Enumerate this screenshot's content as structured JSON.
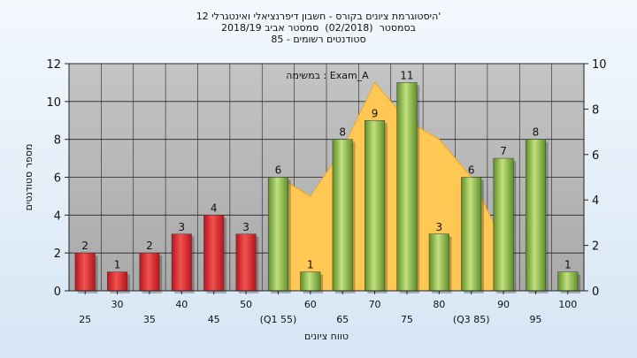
{
  "header": {
    "title_lines": [
      "היסטוגרמת ציונים בקורס - חשבון דיפרנציאלי ואינטגרלי 12'",
      "בסמסטר  (02/2018)  סמסטר אביב 2018/19",
      "סטודנטים רשומים - 85"
    ]
  },
  "chart_data": {
    "type": "bar",
    "xlabel": "טווח ציונים",
    "ylabel": "מספר סטודנטים",
    "ylim": [
      0,
      12
    ],
    "yticks": [
      0,
      2,
      4,
      6,
      8,
      10,
      12
    ],
    "y2lim": [
      0,
      10
    ],
    "y2ticks": [
      0,
      2,
      4,
      6,
      8,
      10
    ],
    "grid": true,
    "annotation": "במשימה : Exam_A",
    "categories": [
      "25",
      "30",
      "35",
      "40",
      "45",
      "50",
      "(Q1 55)",
      "60",
      "65",
      "70",
      "75",
      "80",
      "(Q3 85)",
      "90",
      "95",
      "100"
    ],
    "values": [
      2,
      1,
      2,
      3,
      4,
      3,
      6,
      1,
      8,
      9,
      11,
      3,
      6,
      7,
      8,
      1
    ],
    "bar_colors": [
      "red",
      "red",
      "red",
      "red",
      "red",
      "red",
      "green",
      "green",
      "green",
      "green",
      "green",
      "green",
      "green",
      "green",
      "green",
      "green"
    ],
    "area_values": [
      null,
      null,
      null,
      null,
      null,
      null,
      6,
      5,
      7.5,
      11,
      9,
      8,
      6,
      2.5,
      null,
      null
    ],
    "colors": {
      "red": "#e8423f",
      "green": "#8fc04a",
      "area": "#ffc753",
      "plot_bg": "#b6b6b6"
    }
  }
}
